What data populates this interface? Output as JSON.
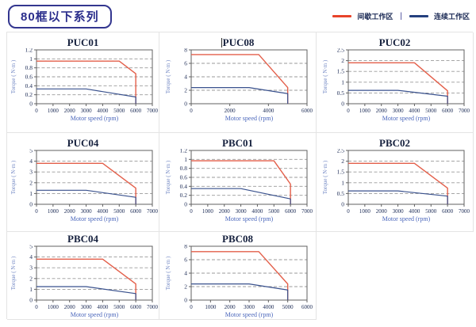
{
  "header": {
    "badge": "80框以下系列",
    "legend": [
      {
        "label": "间歇工作区",
        "color": "#e8432a"
      },
      {
        "label": "连续工作区",
        "color": "#24407e"
      }
    ],
    "legend_separator": "|"
  },
  "colors": {
    "intermittent_line": "#e35f4a",
    "continuous_line": "#39518d",
    "frame": "#606060",
    "gridline": "#9a9a9a",
    "tick_text": "#1c2b55",
    "xlabel_text": "#4a66bb",
    "ylabel_text": "#7388c4",
    "cell_border": "#e4e4e4",
    "badge_border": "#33368f"
  },
  "chart_data": [
    {
      "type": "line",
      "title": "PUC01",
      "title_caret": false,
      "xlabel": "Motor speed (rpm)",
      "ylabel": "Torque ( N·m )",
      "xlim": [
        0,
        7000
      ],
      "ylim": [
        0,
        1.2
      ],
      "xticks": [
        0,
        1000,
        2000,
        3000,
        4000,
        5000,
        6000,
        7000
      ],
      "yticks": [
        0,
        0.2,
        0.4,
        0.6,
        0.8,
        1,
        1.2
      ],
      "grid": "dashed-horizontal",
      "legend_position": "none",
      "series": [
        {
          "name": "间歇工作区",
          "points": [
            [
              0,
              0.95
            ],
            [
              5000,
              0.95
            ],
            [
              6000,
              0.67
            ],
            [
              6000,
              0
            ]
          ]
        },
        {
          "name": "连续工作区",
          "points": [
            [
              0,
              0.33
            ],
            [
              3000,
              0.33
            ],
            [
              6000,
              0.15
            ],
            [
              6000,
              0
            ]
          ]
        }
      ]
    },
    {
      "type": "line",
      "title": "PUC08",
      "title_caret": true,
      "xlabel": "Motor speed (rpm)",
      "ylabel": "Torque ( N·m )",
      "xlim": [
        0,
        6000
      ],
      "ylim": [
        0,
        8
      ],
      "xticks": [
        0,
        2000,
        4000,
        6000
      ],
      "yticks": [
        0,
        2,
        4,
        6,
        8
      ],
      "grid": "dashed-horizontal",
      "legend_position": "none",
      "series": [
        {
          "name": "间歇工作区",
          "points": [
            [
              0,
              7.3
            ],
            [
              3500,
              7.3
            ],
            [
              5000,
              2.4
            ],
            [
              5000,
              0
            ]
          ]
        },
        {
          "name": "连续工作区",
          "points": [
            [
              0,
              2.4
            ],
            [
              3000,
              2.4
            ],
            [
              5000,
              1.5
            ],
            [
              5000,
              0
            ]
          ]
        }
      ]
    },
    {
      "type": "line",
      "title": "PUC02",
      "title_caret": false,
      "xlabel": "Motor speed (rpm)",
      "ylabel": "Torque ( N·m )",
      "xlim": [
        0,
        7000
      ],
      "ylim": [
        0,
        2.5
      ],
      "xticks": [
        0,
        1000,
        2000,
        3000,
        4000,
        5000,
        6000,
        7000
      ],
      "yticks": [
        0,
        0.5,
        1,
        1.5,
        2,
        2.5
      ],
      "grid": "dashed-horizontal",
      "legend_position": "none",
      "series": [
        {
          "name": "间歇工作区",
          "points": [
            [
              0,
              1.9
            ],
            [
              4000,
              1.9
            ],
            [
              6000,
              0.6
            ],
            [
              6000,
              0
            ]
          ]
        },
        {
          "name": "连续工作区",
          "points": [
            [
              0,
              0.62
            ],
            [
              3000,
              0.62
            ],
            [
              6000,
              0.35
            ],
            [
              6000,
              0
            ]
          ]
        }
      ]
    },
    {
      "type": "line",
      "title": "PUC04",
      "title_caret": false,
      "xlabel": "Motor speed (rpm)",
      "ylabel": "Torque ( N·m )",
      "xlim": [
        0,
        7000
      ],
      "ylim": [
        0,
        5
      ],
      "xticks": [
        0,
        1000,
        2000,
        3000,
        4000,
        5000,
        6000,
        7000
      ],
      "yticks": [
        0,
        1,
        2,
        3,
        4,
        5
      ],
      "grid": "dashed-horizontal",
      "legend_position": "none",
      "series": [
        {
          "name": "间歇工作区",
          "points": [
            [
              0,
              3.8
            ],
            [
              4000,
              3.8
            ],
            [
              6000,
              1.5
            ],
            [
              6000,
              0
            ]
          ]
        },
        {
          "name": "连续工作区",
          "points": [
            [
              0,
              1.3
            ],
            [
              3000,
              1.3
            ],
            [
              6000,
              0.65
            ],
            [
              6000,
              0
            ]
          ]
        }
      ]
    },
    {
      "type": "line",
      "title": "PBC01",
      "title_caret": false,
      "xlabel": "Motor speed (rpm)",
      "ylabel": "Torque ( N·m )",
      "xlim": [
        0,
        7000
      ],
      "ylim": [
        0,
        1.2
      ],
      "xticks": [
        0,
        1000,
        2000,
        3000,
        4000,
        5000,
        6000,
        7000
      ],
      "yticks": [
        0,
        0.2,
        0.4,
        0.6,
        0.8,
        1,
        1.2
      ],
      "grid": "dashed-horizontal",
      "legend_position": "none",
      "series": [
        {
          "name": "间歇工作区",
          "points": [
            [
              0,
              0.97
            ],
            [
              5000,
              0.97
            ],
            [
              6000,
              0.45
            ],
            [
              6000,
              0
            ]
          ]
        },
        {
          "name": "连续工作区",
          "points": [
            [
              0,
              0.35
            ],
            [
              3000,
              0.35
            ],
            [
              6000,
              0.12
            ],
            [
              6000,
              0
            ]
          ]
        }
      ]
    },
    {
      "type": "line",
      "title": "PBC02",
      "title_caret": false,
      "xlabel": "Motor speed (rpm)",
      "ylabel": "Torque ( N·m )",
      "xlim": [
        0,
        7000
      ],
      "ylim": [
        0,
        2.5
      ],
      "xticks": [
        0,
        1000,
        2000,
        3000,
        4000,
        5000,
        6000,
        7000
      ],
      "yticks": [
        0,
        0.5,
        1,
        1.5,
        2,
        2.5
      ],
      "grid": "dashed-horizontal",
      "legend_position": "none",
      "series": [
        {
          "name": "间歇工作区",
          "points": [
            [
              0,
              1.9
            ],
            [
              4000,
              1.9
            ],
            [
              6000,
              0.75
            ],
            [
              6000,
              0
            ]
          ]
        },
        {
          "name": "连续工作区",
          "points": [
            [
              0,
              0.62
            ],
            [
              3000,
              0.62
            ],
            [
              6000,
              0.38
            ],
            [
              6000,
              0
            ]
          ]
        }
      ]
    },
    {
      "type": "line",
      "title": "PBC04",
      "title_caret": false,
      "xlabel": "Motor speed (rpm)",
      "ylabel": "Torque ( N·m )",
      "xlim": [
        0,
        7000
      ],
      "ylim": [
        0,
        5
      ],
      "xticks": [
        0,
        1000,
        2000,
        3000,
        4000,
        5000,
        6000,
        7000
      ],
      "yticks": [
        0,
        1,
        2,
        3,
        4,
        5
      ],
      "grid": "dashed-horizontal",
      "legend_position": "none",
      "series": [
        {
          "name": "间歇工作区",
          "points": [
            [
              0,
              3.8
            ],
            [
              4000,
              3.8
            ],
            [
              6000,
              1.5
            ],
            [
              6000,
              0
            ]
          ]
        },
        {
          "name": "连续工作区",
          "points": [
            [
              0,
              1.25
            ],
            [
              3000,
              1.25
            ],
            [
              6000,
              0.6
            ],
            [
              6000,
              0
            ]
          ]
        }
      ]
    },
    {
      "type": "line",
      "title": "PBC08",
      "title_caret": false,
      "xlabel": "Motor speed (rpm)",
      "ylabel": "Torque ( N·m )",
      "xlim": [
        0,
        6000
      ],
      "ylim": [
        0,
        8
      ],
      "xticks": [
        0,
        1000,
        2000,
        3000,
        4000,
        5000,
        6000
      ],
      "yticks": [
        0,
        2,
        4,
        6,
        8
      ],
      "grid": "dashed-horizontal",
      "legend_position": "none",
      "series": [
        {
          "name": "间歇工作区",
          "points": [
            [
              0,
              7.2
            ],
            [
              3500,
              7.2
            ],
            [
              5000,
              2.4
            ],
            [
              5000,
              0
            ]
          ]
        },
        {
          "name": "连续工作区",
          "points": [
            [
              0,
              2.4
            ],
            [
              3000,
              2.4
            ],
            [
              5000,
              1.5
            ],
            [
              5000,
              0
            ]
          ]
        }
      ]
    }
  ]
}
